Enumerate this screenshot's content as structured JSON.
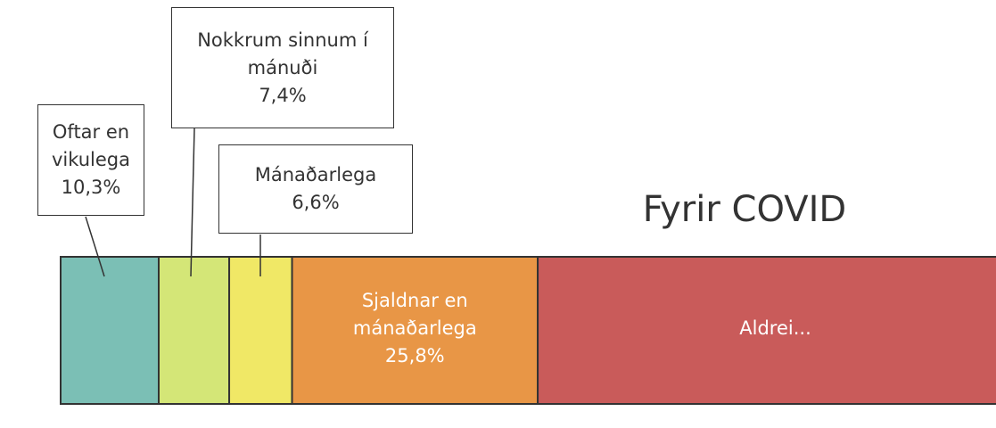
{
  "chart_data": {
    "type": "stacked_bar",
    "title": "Fyrir COVID",
    "xlim": [
      0,
      100
    ],
    "series": [
      {
        "name": "Oftar en vikulega",
        "color": "#7bbfb5",
        "values": [
          10.3
        ],
        "value_labels": [
          "10,3%"
        ]
      },
      {
        "name": "Nokkrum sinnum í mánuði",
        "color": "#d4e677",
        "values": [
          7.4
        ],
        "value_labels": [
          "7,4%"
        ]
      },
      {
        "name": "Mánaðarlega",
        "color": "#f0e866",
        "values": [
          6.6
        ],
        "value_labels": [
          "6,6%"
        ]
      },
      {
        "name": "Sjaldnar en mánaðarlega",
        "color": "#e89646",
        "values": [
          25.8
        ],
        "value_labels": [
          "25,8%"
        ]
      },
      {
        "name": "Aldrei...",
        "color": "#c95b5a",
        "values": [
          49.9
        ]
      }
    ]
  }
}
